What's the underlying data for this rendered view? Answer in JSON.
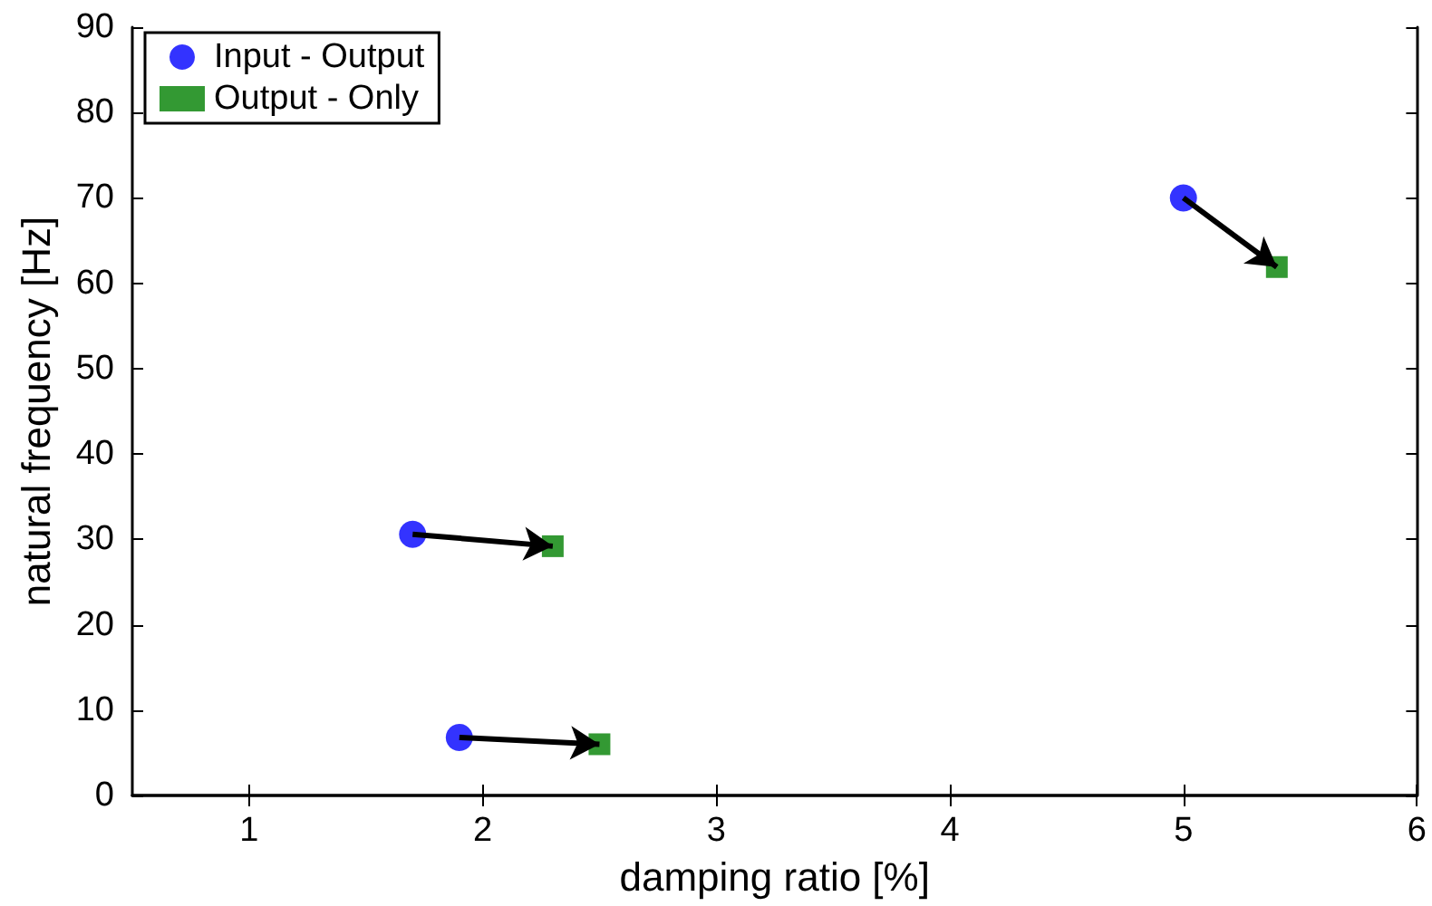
{
  "chart_data": {
    "type": "scatter",
    "xlabel": "damping ratio [%]",
    "ylabel": "natural frequency [Hz]",
    "xlim": [
      0.5,
      6
    ],
    "xticks": [
      1,
      2,
      3,
      4,
      5,
      6
    ],
    "ylim": [
      0,
      90
    ],
    "yticks": [
      0,
      10,
      20,
      30,
      40,
      50,
      60,
      70,
      80,
      90
    ],
    "grid": false,
    "legend": "top left",
    "series": [
      {
        "name": "Input - Output",
        "color": "#0000ff",
        "marker": "circle",
        "x": [
          1.7,
          1.9,
          5.0
        ],
        "values": [
          30.6,
          6.8,
          70.0
        ]
      },
      {
        "name": "Output - Only",
        "color": "#008000",
        "marker": "square",
        "x": [
          2.3,
          2.5,
          5.4
        ],
        "values": [
          29.2,
          6.0,
          61.9
        ]
      }
    ]
  }
}
